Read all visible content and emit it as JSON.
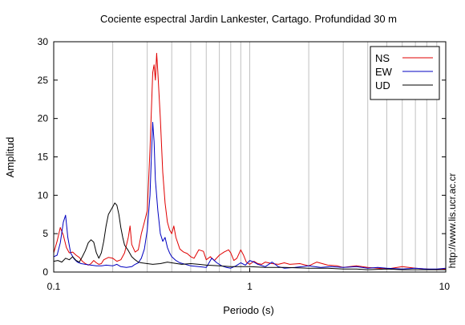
{
  "chart_data": {
    "type": "line",
    "title": "Cociente espectral Jardin Lankester, Cartago. Profundidad 30 m",
    "xlabel": "Periodo (s)",
    "ylabel": "Amplitud",
    "x_scale": "log",
    "xlim": [
      0.1,
      10
    ],
    "ylim": [
      0,
      30
    ],
    "x_tick_labels": [
      "0.1",
      "1",
      "10"
    ],
    "y_tick_labels": [
      "0",
      "5",
      "10",
      "15",
      "20",
      "25",
      "30"
    ],
    "grid": "vertical",
    "legend_position": "top-right",
    "side_annotation": "http://www.lis.ucr.ac.cr",
    "series": [
      {
        "name": "NS",
        "color": "#e00000",
        "points": [
          [
            0.1,
            2.5
          ],
          [
            0.104,
            4
          ],
          [
            0.108,
            5.8
          ],
          [
            0.112,
            4.8
          ],
          [
            0.116,
            3.2
          ],
          [
            0.12,
            2.5
          ],
          [
            0.125,
            2.6
          ],
          [
            0.13,
            2.2
          ],
          [
            0.135,
            1.9
          ],
          [
            0.14,
            1.4
          ],
          [
            0.145,
            1.1
          ],
          [
            0.15,
            0.9
          ],
          [
            0.155,
            1.1
          ],
          [
            0.16,
            1.5
          ],
          [
            0.165,
            1.2
          ],
          [
            0.17,
            1
          ],
          [
            0.175,
            1.1
          ],
          [
            0.18,
            1.6
          ],
          [
            0.19,
            1.9
          ],
          [
            0.2,
            1.8
          ],
          [
            0.21,
            1.4
          ],
          [
            0.22,
            1.6
          ],
          [
            0.23,
            2.5
          ],
          [
            0.24,
            4.5
          ],
          [
            0.245,
            6
          ],
          [
            0.25,
            3.6
          ],
          [
            0.26,
            2.6
          ],
          [
            0.27,
            2.9
          ],
          [
            0.28,
            5
          ],
          [
            0.29,
            6.5
          ],
          [
            0.3,
            8
          ],
          [
            0.31,
            16
          ],
          [
            0.32,
            26
          ],
          [
            0.325,
            27
          ],
          [
            0.33,
            25
          ],
          [
            0.335,
            28.5
          ],
          [
            0.34,
            26
          ],
          [
            0.35,
            20
          ],
          [
            0.36,
            13
          ],
          [
            0.37,
            9
          ],
          [
            0.38,
            6.5
          ],
          [
            0.39,
            5.5
          ],
          [
            0.4,
            5
          ],
          [
            0.41,
            6
          ],
          [
            0.42,
            4.5
          ],
          [
            0.44,
            3
          ],
          [
            0.46,
            2.6
          ],
          [
            0.48,
            2.4
          ],
          [
            0.5,
            2
          ],
          [
            0.52,
            1.8
          ],
          [
            0.55,
            2.9
          ],
          [
            0.58,
            2.7
          ],
          [
            0.6,
            1.6
          ],
          [
            0.63,
            2
          ],
          [
            0.66,
            1.5
          ],
          [
            0.7,
            2.2
          ],
          [
            0.74,
            2.6
          ],
          [
            0.78,
            2.9
          ],
          [
            0.8,
            2.5
          ],
          [
            0.83,
            1.5
          ],
          [
            0.86,
            1.8
          ],
          [
            0.9,
            2.9
          ],
          [
            0.93,
            2.2
          ],
          [
            0.96,
            1.3
          ],
          [
            1,
            1
          ],
          [
            1.05,
            1.4
          ],
          [
            1.1,
            1.1
          ],
          [
            1.15,
            1
          ],
          [
            1.2,
            1.3
          ],
          [
            1.3,
            1.1
          ],
          [
            1.4,
            1
          ],
          [
            1.5,
            1.2
          ],
          [
            1.6,
            1
          ],
          [
            1.8,
            1.1
          ],
          [
            2,
            0.8
          ],
          [
            2.2,
            1.3
          ],
          [
            2.5,
            0.9
          ],
          [
            2.8,
            0.8
          ],
          [
            3,
            0.6
          ],
          [
            3.5,
            0.8
          ],
          [
            4,
            0.6
          ],
          [
            4.5,
            0.5
          ],
          [
            5,
            0.4
          ],
          [
            6,
            0.7
          ],
          [
            7,
            0.5
          ],
          [
            8,
            0.4
          ],
          [
            9,
            0.3
          ],
          [
            10,
            0.4
          ]
        ]
      },
      {
        "name": "EW",
        "color": "#0000c0",
        "points": [
          [
            0.1,
            2
          ],
          [
            0.104,
            2.2
          ],
          [
            0.108,
            3.8
          ],
          [
            0.112,
            6.5
          ],
          [
            0.115,
            7.4
          ],
          [
            0.118,
            4.5
          ],
          [
            0.122,
            2.5
          ],
          [
            0.127,
            1.7
          ],
          [
            0.132,
            1.3
          ],
          [
            0.138,
            1.1
          ],
          [
            0.145,
            1
          ],
          [
            0.155,
            0.9
          ],
          [
            0.165,
            0.8
          ],
          [
            0.175,
            0.8
          ],
          [
            0.185,
            0.9
          ],
          [
            0.2,
            0.8
          ],
          [
            0.21,
            1
          ],
          [
            0.22,
            0.7
          ],
          [
            0.235,
            0.6
          ],
          [
            0.25,
            0.7
          ],
          [
            0.26,
            1
          ],
          [
            0.27,
            1.2
          ],
          [
            0.28,
            1.8
          ],
          [
            0.29,
            3
          ],
          [
            0.3,
            5.5
          ],
          [
            0.31,
            10
          ],
          [
            0.315,
            15
          ],
          [
            0.32,
            19.5
          ],
          [
            0.325,
            17
          ],
          [
            0.33,
            12
          ],
          [
            0.34,
            8
          ],
          [
            0.35,
            5
          ],
          [
            0.36,
            4
          ],
          [
            0.37,
            4.5
          ],
          [
            0.38,
            3.2
          ],
          [
            0.39,
            2.5
          ],
          [
            0.4,
            2
          ],
          [
            0.42,
            1.5
          ],
          [
            0.44,
            1.2
          ],
          [
            0.47,
            1
          ],
          [
            0.5,
            0.8
          ],
          [
            0.55,
            0.7
          ],
          [
            0.6,
            0.6
          ],
          [
            0.64,
            1.8
          ],
          [
            0.68,
            1.2
          ],
          [
            0.72,
            0.8
          ],
          [
            0.76,
            0.6
          ],
          [
            0.8,
            0.5
          ],
          [
            0.85,
            0.8
          ],
          [
            0.9,
            1.2
          ],
          [
            0.95,
            0.9
          ],
          [
            1,
            1.5
          ],
          [
            1.05,
            1.3
          ],
          [
            1.1,
            1
          ],
          [
            1.2,
            0.7
          ],
          [
            1.3,
            1.3
          ],
          [
            1.4,
            0.7
          ],
          [
            1.5,
            0.5
          ],
          [
            1.7,
            0.6
          ],
          [
            2,
            0.8
          ],
          [
            2.3,
            0.6
          ],
          [
            2.6,
            0.7
          ],
          [
            3,
            0.6
          ],
          [
            3.5,
            0.7
          ],
          [
            4,
            0.5
          ],
          [
            4.5,
            0.6
          ],
          [
            5,
            0.5
          ],
          [
            6,
            0.4
          ],
          [
            7,
            0.5
          ],
          [
            8,
            0.4
          ],
          [
            9,
            0.4
          ],
          [
            10,
            0.5
          ]
        ]
      },
      {
        "name": "UD",
        "color": "#000000",
        "points": [
          [
            0.1,
            1.4
          ],
          [
            0.105,
            1.5
          ],
          [
            0.11,
            1.3
          ],
          [
            0.115,
            1.8
          ],
          [
            0.12,
            1.6
          ],
          [
            0.125,
            2
          ],
          [
            0.13,
            1.5
          ],
          [
            0.135,
            1.3
          ],
          [
            0.14,
            2
          ],
          [
            0.145,
            2.8
          ],
          [
            0.15,
            3.8
          ],
          [
            0.155,
            4.2
          ],
          [
            0.16,
            3.9
          ],
          [
            0.165,
            2.5
          ],
          [
            0.17,
            1.8
          ],
          [
            0.175,
            2.5
          ],
          [
            0.18,
            4
          ],
          [
            0.185,
            6
          ],
          [
            0.19,
            7.5
          ],
          [
            0.195,
            8
          ],
          [
            0.2,
            8.5
          ],
          [
            0.205,
            9
          ],
          [
            0.21,
            8.7
          ],
          [
            0.215,
            7.5
          ],
          [
            0.22,
            5.8
          ],
          [
            0.225,
            4.5
          ],
          [
            0.23,
            3.5
          ],
          [
            0.24,
            2.8
          ],
          [
            0.25,
            2
          ],
          [
            0.26,
            1.6
          ],
          [
            0.27,
            1.3
          ],
          [
            0.28,
            1.2
          ],
          [
            0.3,
            1.1
          ],
          [
            0.32,
            1
          ],
          [
            0.35,
            1.1
          ],
          [
            0.38,
            1.3
          ],
          [
            0.4,
            1.2
          ],
          [
            0.45,
            1
          ],
          [
            0.5,
            1.1
          ],
          [
            0.55,
            1
          ],
          [
            0.6,
            0.9
          ],
          [
            0.7,
            0.8
          ],
          [
            0.8,
            0.7
          ],
          [
            0.9,
            0.7
          ],
          [
            1,
            0.7
          ],
          [
            1.2,
            0.6
          ],
          [
            1.5,
            0.6
          ],
          [
            2,
            0.5
          ],
          [
            2.5,
            0.5
          ],
          [
            3,
            0.4
          ],
          [
            3.5,
            0.4
          ],
          [
            4,
            0.3
          ],
          [
            5,
            0.4
          ],
          [
            6,
            0.3
          ],
          [
            7,
            0.3
          ],
          [
            8,
            0.3
          ],
          [
            9,
            0.3
          ],
          [
            10,
            0.3
          ]
        ]
      }
    ]
  }
}
